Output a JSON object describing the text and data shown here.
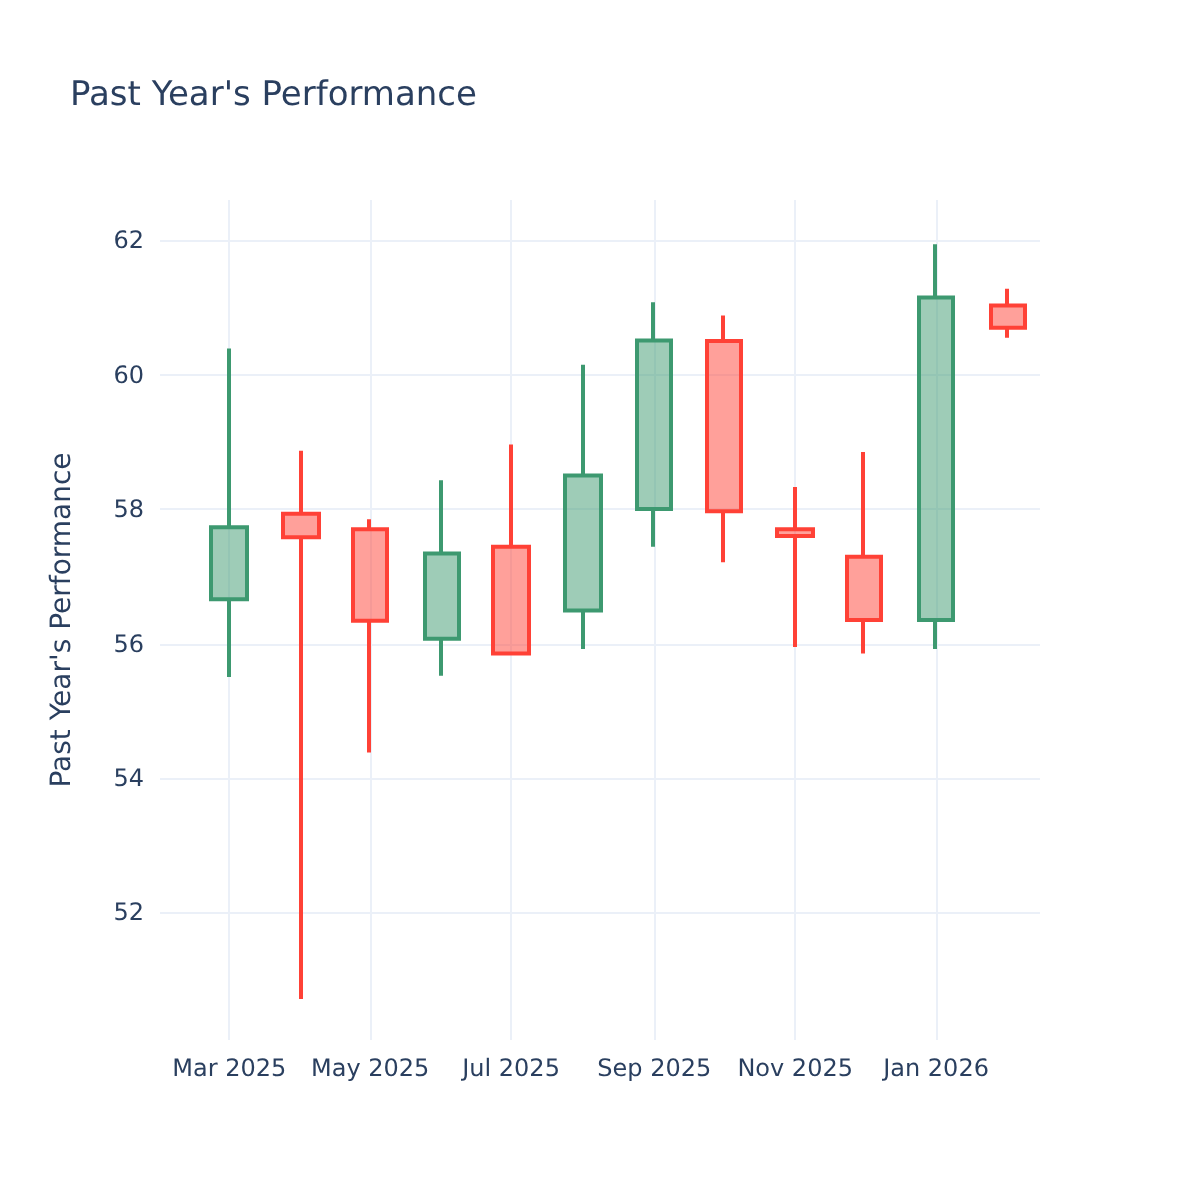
{
  "chart_data": {
    "type": "candlestick",
    "title": "Past Year's Performance",
    "ylabel": "Past Year's Performance",
    "x": [
      "2025-03-01",
      "2025-04-01",
      "2025-05-01",
      "2025-06-01",
      "2025-07-01",
      "2025-08-01",
      "2025-09-01",
      "2025-10-01",
      "2025-11-01",
      "2025-12-01",
      "2026-01-01",
      "2026-02-01"
    ],
    "ohlc": [
      [
        56.66,
        60.39,
        55.5,
        57.73
      ],
      [
        57.93,
        58.87,
        50.71,
        57.58
      ],
      [
        57.7,
        57.85,
        54.38,
        56.34
      ],
      [
        56.07,
        58.43,
        55.52,
        57.34
      ],
      [
        57.44,
        58.96,
        55.85,
        55.85
      ],
      [
        56.49,
        60.15,
        55.92,
        58.5
      ],
      [
        58.0,
        61.08,
        57.44,
        60.51
      ],
      [
        60.5,
        60.88,
        57.21,
        57.97
      ],
      [
        57.7,
        58.33,
        55.95,
        57.6
      ],
      [
        57.29,
        58.85,
        55.85,
        56.35
      ],
      [
        56.35,
        61.94,
        55.92,
        61.15
      ],
      [
        61.03,
        61.28,
        60.55,
        60.7
      ]
    ],
    "colors": [
      "#3d9970",
      "#ff4136",
      "#ff4136",
      "#3d9970",
      "#ff4136",
      "#3d9970",
      "#3d9970",
      "#ff4136",
      "#ff4136",
      "#ff4136",
      "#3d9970",
      "#ff4136"
    ],
    "xlim": [
      "2025-01-30",
      "2026-02-15"
    ],
    "xticks": [
      {
        "value": "2025-03-01",
        "label": "Mar 2025"
      },
      {
        "value": "2025-05-01",
        "label": "May 2025"
      },
      {
        "value": "2025-07-01",
        "label": "Jul 2025"
      },
      {
        "value": "2025-09-01",
        "label": "Sep 2025"
      },
      {
        "value": "2025-11-01",
        "label": "Nov 2025"
      },
      {
        "value": "2026-01-01",
        "label": "Jan 2026"
      }
    ],
    "ylim": [
      50.1,
      62.6
    ],
    "yticks": [
      52,
      54,
      56,
      58,
      60,
      62
    ],
    "grid": true
  }
}
